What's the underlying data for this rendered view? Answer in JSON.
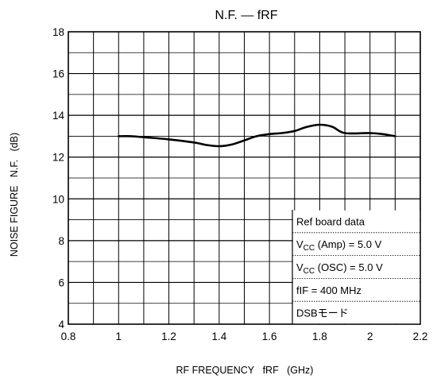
{
  "chart_data": {
    "type": "line",
    "title": "N.F. — fRF",
    "xlabel": "RF FREQUENCY   fRF   (GHz)",
    "ylabel": "NOISE FIGURE   N.F.   (dB)",
    "xlim": [
      0.8,
      2.2
    ],
    "ylim": [
      4,
      18
    ],
    "x_ticks": [
      0.8,
      1.0,
      1.2,
      1.4,
      1.6,
      1.8,
      2.0,
      2.2
    ],
    "x_tick_labels": [
      "0.8",
      "1",
      "1.2",
      "1.4",
      "1.6",
      "1.8",
      "2",
      "2.2"
    ],
    "y_ticks": [
      4,
      6,
      8,
      10,
      12,
      14,
      16,
      18
    ],
    "y_tick_labels": [
      "4",
      "6",
      "8",
      "10",
      "12",
      "14",
      "16",
      "18"
    ],
    "grid": true,
    "grid_x_step": 0.1,
    "grid_y_step": 1,
    "series": [
      {
        "x": [
          1.0,
          1.05,
          1.1,
          1.2,
          1.3,
          1.35,
          1.4,
          1.45,
          1.5,
          1.55,
          1.6,
          1.65,
          1.7,
          1.75,
          1.8,
          1.85,
          1.9,
          2.0,
          2.05,
          2.1
        ],
        "values": [
          13.0,
          13.0,
          12.95,
          12.85,
          12.7,
          12.58,
          12.52,
          12.6,
          12.8,
          13.0,
          13.1,
          13.15,
          13.25,
          13.45,
          13.55,
          13.45,
          13.15,
          13.15,
          13.1,
          13.0
        ]
      }
    ],
    "legend": {
      "placement": "bottom-right",
      "lines": [
        {
          "text": "Ref board data"
        },
        {
          "main": "V",
          "sub": "CC",
          "rest": " (Amp) = 5.0 V"
        },
        {
          "main": "V",
          "sub": "CC",
          "rest": " (OSC) = 5.0 V"
        },
        {
          "text": "fIF = 400 MHz"
        },
        {
          "text": "DSBモード"
        }
      ]
    },
    "colors": {
      "line": "#000000",
      "grid": "#000000",
      "background": "#ffffff"
    }
  }
}
